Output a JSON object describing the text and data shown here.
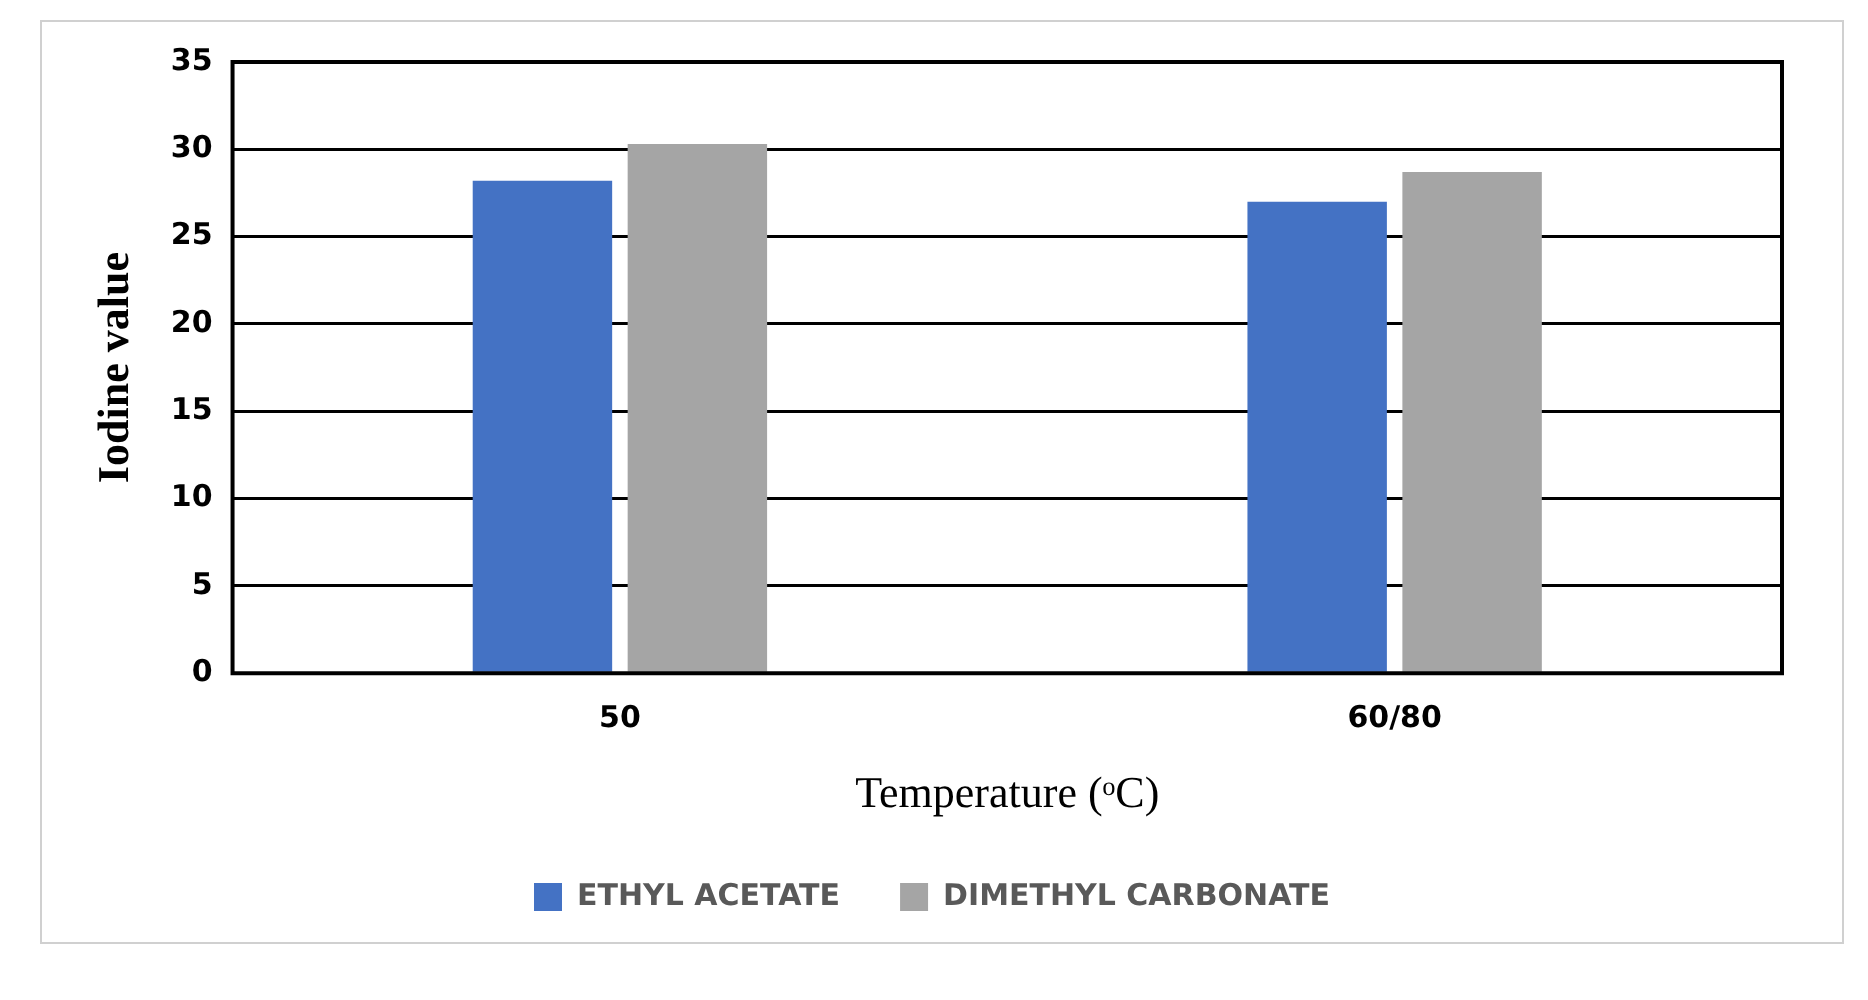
{
  "chart_data": {
    "type": "bar",
    "xlabel": "Temperature (ᵒC)",
    "ylabel": "Iodine value",
    "categories": [
      "50",
      "60/80"
    ],
    "series": [
      {
        "name": "ETHYL ACETATE",
        "color": "#4472c4",
        "values": [
          28.2,
          27.0
        ]
      },
      {
        "name": "DIMETHYL CARBONATE",
        "color": "#a5a5a5",
        "values": [
          30.3,
          28.7
        ]
      }
    ],
    "ylim": [
      0,
      35
    ],
    "yticks": [
      0,
      5,
      10,
      15,
      20,
      25,
      30,
      35
    ],
    "grid": "y",
    "legend": "bottom"
  }
}
